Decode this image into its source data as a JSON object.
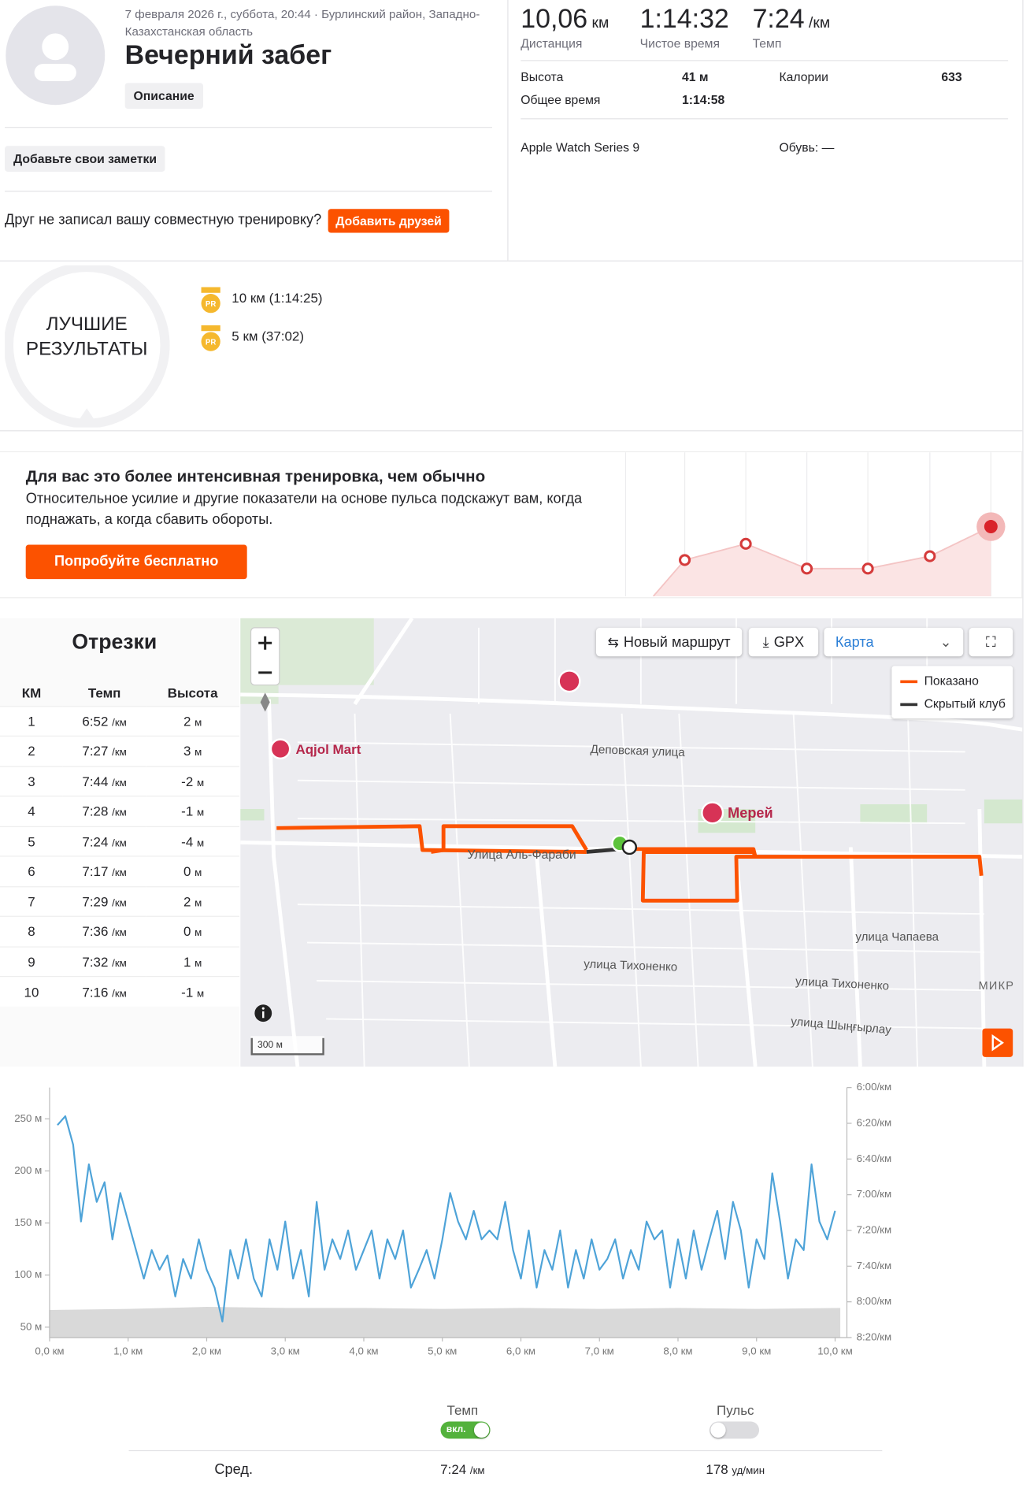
{
  "activity": {
    "meta": "7 февраля 2026 г., суббота, 20:44 · Бурлинский район, Западно-Казахстанская область",
    "title": "Вечерний забег",
    "description_button": "Описание",
    "notes_button": "Добавьте свои заметки",
    "friends_prompt": "Друг не записал вашу совместную тренировку?",
    "friends_button": "Добавить друзей"
  },
  "stats": {
    "distance": {
      "value": "10,06",
      "unit": "км",
      "label": "Дистанция"
    },
    "moving_time": {
      "value": "1:14:32",
      "label": "Чистое время"
    },
    "pace": {
      "value": "7:24",
      "unit": "/км",
      "label": "Темп"
    },
    "details": [
      {
        "label": "Высота",
        "value": "41 м"
      },
      {
        "label": "Калории",
        "value": "633"
      },
      {
        "label": "Общее время",
        "value": "1:14:58"
      }
    ],
    "device": "Apple Watch Series 9",
    "shoes": "Обувь: —"
  },
  "best_efforts": {
    "title_line1": "ЛУЧШИЕ",
    "title_line2": "РЕЗУЛЬТАТЫ",
    "items": [
      {
        "badge": "PR",
        "distance": "10 км",
        "time": "(1:14:25)"
      },
      {
        "badge": "PR",
        "distance": "5 км",
        "time": "(37:02)"
      }
    ]
  },
  "promo": {
    "title": "Для вас это более интенсивная тренировка, чем обычно",
    "text": "Относительное усилие и другие показатели на основе пульса подскажут вам, когда поднажать, а когда сбавить обороты.",
    "button": "Попробуйте бесплатно"
  },
  "splits": {
    "title": "Отрезки",
    "columns": [
      "КМ",
      "Темп",
      "Высота"
    ],
    "pace_unit": "/км",
    "elev_unit": "м",
    "rows": [
      {
        "km": "1",
        "pace": "6:52",
        "elev": "2"
      },
      {
        "km": "2",
        "pace": "7:27",
        "elev": "3"
      },
      {
        "km": "3",
        "pace": "7:44",
        "elev": "-2"
      },
      {
        "km": "4",
        "pace": "7:28",
        "elev": "-1"
      },
      {
        "km": "5",
        "pace": "7:24",
        "elev": "-4"
      },
      {
        "km": "6",
        "pace": "7:17",
        "elev": "0"
      },
      {
        "km": "7",
        "pace": "7:29",
        "elev": "2"
      },
      {
        "km": "8",
        "pace": "7:36",
        "elev": "0"
      },
      {
        "km": "9",
        "pace": "7:32",
        "elev": "1"
      },
      {
        "km": "10",
        "pace": "7:16",
        "elev": "-1"
      }
    ]
  },
  "map": {
    "buttons": {
      "new_route": "Новый маршрут",
      "gpx": "GPX",
      "layer": "Карта"
    },
    "legend": [
      "Показано",
      "Скрытый клуб"
    ],
    "places": [
      "Aqjol Mart",
      "Мерей"
    ],
    "streets": [
      "Деповская улица",
      "Улица Аль-Фараби",
      "улица Чапаева",
      "улица Тихоненко",
      "улица Тихоненко",
      "улица Шыңғырлау"
    ],
    "district": "МИКР",
    "scale": "300 м"
  },
  "chart_data": {
    "type": "line",
    "xlim": [
      0,
      10.15
    ],
    "xticks": [
      {
        "value": 0,
        "label": "0,0 км"
      },
      {
        "value": 1,
        "label": "1,0 км"
      },
      {
        "value": 2,
        "label": "2,0 км"
      },
      {
        "value": 3,
        "label": "3,0 км"
      },
      {
        "value": 4,
        "label": "4,0 км"
      },
      {
        "value": 5,
        "label": "5,0 км"
      },
      {
        "value": 6,
        "label": "6,0 км"
      },
      {
        "value": 7,
        "label": "7,0 км"
      },
      {
        "value": 8,
        "label": "8,0 км"
      },
      {
        "value": 9,
        "label": "9,0 км"
      },
      {
        "value": 10,
        "label": "10,0 км"
      }
    ],
    "ylim": [
      40,
      280
    ],
    "yticks": [
      {
        "value": 50,
        "label": "50 м"
      },
      {
        "value": 100,
        "label": "100 м"
      },
      {
        "value": 150,
        "label": "150 м"
      },
      {
        "value": 200,
        "label": "200 м"
      },
      {
        "value": 250,
        "label": "250 м"
      }
    ],
    "y2lim": [
      360,
      500
    ],
    "y2_inverted": true,
    "y2ticks": [
      {
        "value": 360,
        "label": "6:00/км"
      },
      {
        "value": 380,
        "label": "6:20/км"
      },
      {
        "value": 400,
        "label": "6:40/км"
      },
      {
        "value": 420,
        "label": "7:00/км"
      },
      {
        "value": 440,
        "label": "7:20/км"
      },
      {
        "value": 460,
        "label": "7:40/км"
      },
      {
        "value": 480,
        "label": "8:00/км"
      },
      {
        "value": 500,
        "label": "8:20/км"
      }
    ],
    "grid": false,
    "series": [
      {
        "name": "Темп",
        "axis": "y2",
        "style": "line",
        "color": "#4ea3d8",
        "x": [
          0.1,
          0.2,
          0.3,
          0.4,
          0.5,
          0.6,
          0.7,
          0.8,
          0.9,
          1.0,
          1.1,
          1.2,
          1.3,
          1.4,
          1.5,
          1.6,
          1.7,
          1.8,
          1.9,
          2.0,
          2.1,
          2.2,
          2.3,
          2.4,
          2.5,
          2.6,
          2.7,
          2.8,
          2.9,
          3.0,
          3.1,
          3.2,
          3.3,
          3.4,
          3.5,
          3.6,
          3.7,
          3.8,
          3.9,
          4.0,
          4.1,
          4.2,
          4.3,
          4.4,
          4.5,
          4.6,
          4.7,
          4.8,
          4.9,
          5.0,
          5.1,
          5.2,
          5.3,
          5.4,
          5.5,
          5.6,
          5.7,
          5.8,
          5.9,
          6.0,
          6.1,
          6.2,
          6.3,
          6.4,
          6.5,
          6.6,
          6.7,
          6.8,
          6.9,
          7.0,
          7.1,
          7.2,
          7.3,
          7.4,
          7.5,
          7.6,
          7.7,
          7.8,
          7.9,
          8.0,
          8.1,
          8.2,
          8.3,
          8.4,
          8.5,
          8.6,
          8.7,
          8.8,
          8.9,
          9.0,
          9.1,
          9.2,
          9.3,
          9.4,
          9.5,
          9.6,
          9.7,
          9.8,
          9.9,
          10.0
        ],
        "values": [
          381,
          376,
          392,
          435,
          403,
          424,
          413,
          445,
          419,
          435,
          451,
          467,
          451,
          462,
          454,
          477,
          456,
          467,
          445,
          462,
          472,
          491,
          451,
          467,
          445,
          467,
          477,
          445,
          462,
          435,
          467,
          451,
          477,
          424,
          462,
          445,
          456,
          440,
          462,
          451,
          440,
          467,
          445,
          456,
          440,
          472,
          462,
          451,
          467,
          445,
          419,
          435,
          445,
          429,
          445,
          440,
          445,
          424,
          451,
          467,
          440,
          472,
          451,
          462,
          440,
          472,
          451,
          467,
          445,
          462,
          456,
          445,
          467,
          451,
          462,
          435,
          445,
          440,
          472,
          445,
          467,
          440,
          462,
          445,
          429,
          456,
          424,
          440,
          472,
          445,
          456,
          408,
          435,
          467,
          445,
          451,
          403,
          435,
          445,
          429
        ]
      },
      {
        "axis": "y",
        "style": "area",
        "color": "#d9d9d9",
        "x": [
          0,
          1,
          2,
          3,
          4,
          5,
          6,
          7,
          8,
          9,
          10.06
        ],
        "values": [
          66,
          67,
          69,
          68,
          68,
          67,
          68,
          67,
          68,
          67,
          68
        ]
      }
    ]
  },
  "summary": {
    "toggle_on": "вкл.",
    "heart_rate_toggle": "Пульс",
    "avg_label": "Сред.",
    "avg_pace": "7:24",
    "avg_pace_unit": "/км",
    "avg_hr": "178",
    "avg_hr_unit": "уд/мин"
  }
}
